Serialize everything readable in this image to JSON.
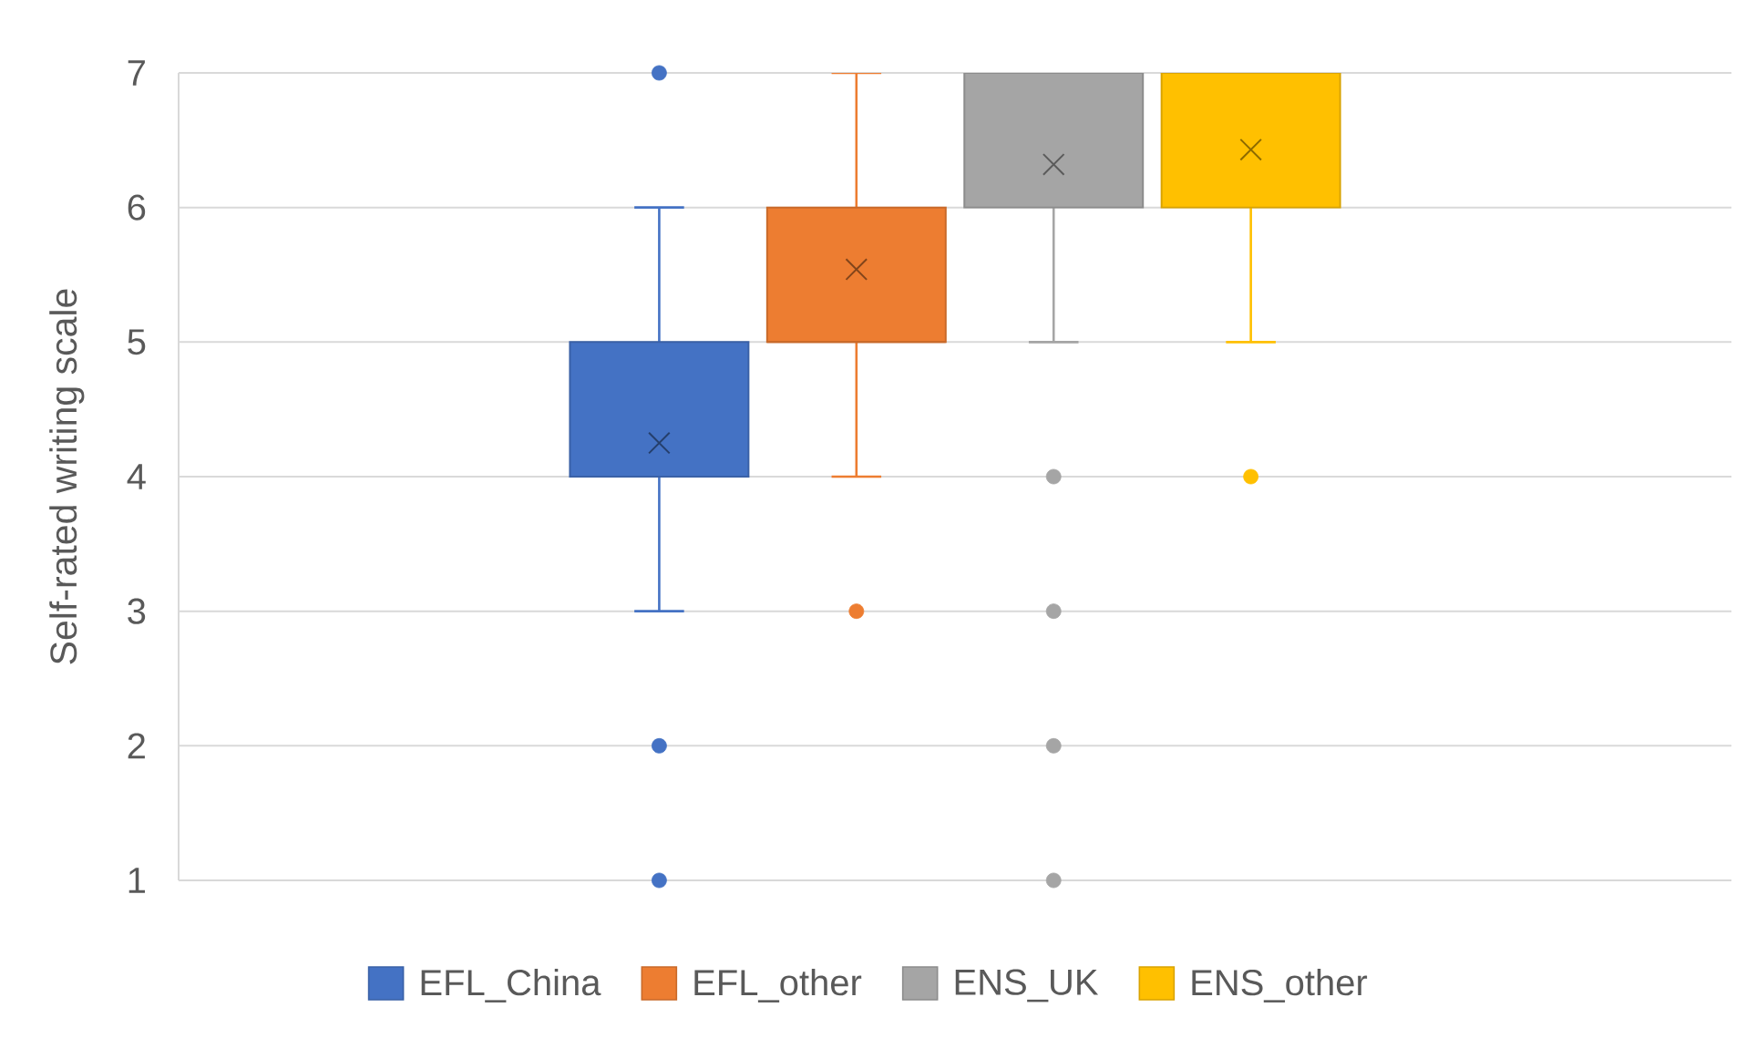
{
  "chart_data": {
    "type": "box",
    "ylabel": "Self-rated writing scale",
    "categories": [
      null
    ],
    "ylim": [
      1,
      7
    ],
    "yticks": [
      1,
      2,
      3,
      4,
      5,
      6,
      7
    ],
    "grid": "y",
    "legend": "bottom",
    "marker": "circle",
    "series": [
      {
        "name": "EFL_China",
        "color": "#4472c4",
        "boxes": [
          {
            "low": 3,
            "q1": 4,
            "median": 4,
            "q3": 5,
            "high": 6,
            "mean": 4.25,
            "outliers": [
              7,
              2,
              1
            ]
          }
        ]
      },
      {
        "name": "EFL_other",
        "color": "#ed7d31",
        "boxes": [
          {
            "low": 4,
            "q1": 5,
            "median": 5,
            "q3": 6,
            "high": 7,
            "mean": 5.54,
            "outliers": [
              3
            ]
          }
        ]
      },
      {
        "name": "ENS_UK",
        "color": "#a5a5a5",
        "boxes": [
          {
            "low": 5,
            "q1": 6,
            "median": 7,
            "q3": 7,
            "high": 7,
            "mean": 6.32,
            "outliers": [
              4,
              3,
              2,
              1
            ]
          }
        ]
      },
      {
        "name": "ENS_other",
        "color": "#ffc000",
        "boxes": [
          {
            "low": 5,
            "q1": 6,
            "median": 7,
            "q3": 7,
            "high": 7,
            "mean": 6.43,
            "outliers": [
              4
            ]
          }
        ]
      }
    ]
  }
}
